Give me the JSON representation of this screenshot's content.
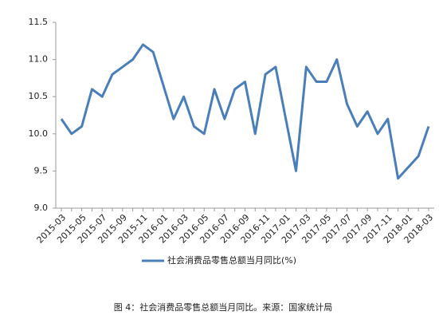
{
  "chart_data": {
    "type": "line",
    "caption": "图 4：社会消费品零售总额当月同比。来源：国家统计局",
    "categories": [
      "2015-03",
      null,
      "2015-05",
      null,
      "2015-07",
      null,
      "2015-09",
      null,
      "2015-11",
      null,
      "2016-01",
      null,
      "2016-03",
      null,
      "2016-05",
      null,
      "2016-07",
      null,
      "2016-09",
      null,
      "2016-11",
      null,
      "2017-01",
      null,
      "2017-03",
      null,
      "2017-05",
      null,
      "2017-07",
      null,
      "2017-09",
      null,
      "2017-11",
      null,
      "2018-01",
      null,
      "2018-03"
    ],
    "series": [
      {
        "name": "社会消费品零售总额当月同比(%)",
        "color": "#4a7ebb",
        "values": [
          10.2,
          10.0,
          10.1,
          10.6,
          10.5,
          10.8,
          10.9,
          11.0,
          11.2,
          11.1,
          10.65,
          10.2,
          10.5,
          10.1,
          10.0,
          10.6,
          10.2,
          10.6,
          10.7,
          10.0,
          10.8,
          10.9,
          10.2,
          9.5,
          10.9,
          10.7,
          10.7,
          11.0,
          10.4,
          10.1,
          10.3,
          10.0,
          10.2,
          9.4,
          9.55,
          9.7,
          10.1
        ]
      }
    ],
    "ylim": [
      9,
      11.5
    ],
    "yticks": [
      {
        "value": 9,
        "label": "9.0"
      },
      9.5,
      {
        "value": 10,
        "label": "10.0"
      },
      10.5,
      {
        "value": 11,
        "label": "11.0"
      },
      11.5
    ],
    "grid": false,
    "legend": "bottom"
  }
}
